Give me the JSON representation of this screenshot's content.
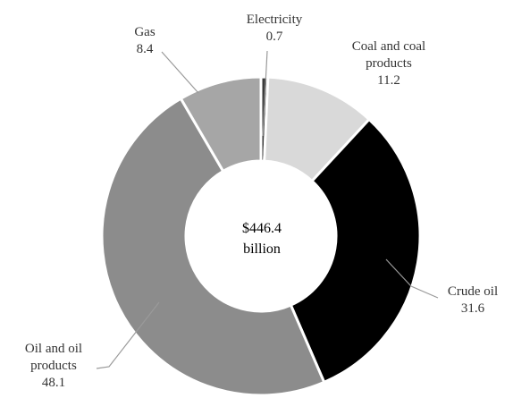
{
  "chart_data": {
    "type": "pie",
    "style": "donut",
    "center_label": [
      "$446.4",
      "billion"
    ],
    "slices": [
      {
        "label": [
          "Electricity"
        ],
        "value": 0.7,
        "color": "#3a3a3a"
      },
      {
        "label": [
          "Coal and coal",
          "products"
        ],
        "value": 11.2,
        "color": "#d9d9d9"
      },
      {
        "label": [
          "Crude oil"
        ],
        "value": 31.6,
        "color": "#000000"
      },
      {
        "label": [
          "Oil and oil",
          "products"
        ],
        "value": 48.1,
        "color": "#8c8c8c"
      },
      {
        "label": [
          "Gas"
        ],
        "value": 8.4,
        "color": "#a6a6a6"
      }
    ]
  }
}
